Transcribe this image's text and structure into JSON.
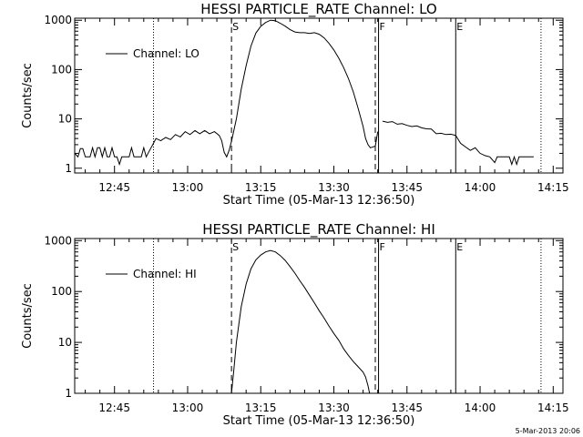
{
  "footer": {
    "timestamp": "5-Mar-2013 20:06"
  },
  "chart_data": [
    {
      "type": "line",
      "title": "HESSI PARTICLE_RATE Channel: LO",
      "xlabel": "Start Time (05-Mar-13 12:36:50)",
      "ylabel": "Counts/sec",
      "yscale": "log",
      "xlim": [
        "12:36:50",
        "14:17:00"
      ],
      "ylim": [
        0.8,
        1100
      ],
      "xticks": [
        "12:45",
        "13:00",
        "13:15",
        "13:30",
        "13:45",
        "14:00",
        "14:15"
      ],
      "yticks": [
        {
          "v": 1,
          "label": "1"
        },
        {
          "v": 10,
          "label": "10"
        },
        {
          "v": 100,
          "label": "100"
        },
        {
          "v": 1000,
          "label": "1000"
        }
      ],
      "legend": {
        "position": "top-left",
        "entries": [
          "Channel: LO"
        ]
      },
      "markers": [
        {
          "t": "12:53:00",
          "style": "dotted",
          "label": ""
        },
        {
          "t": "13:09:00",
          "style": "dashed",
          "label": "S"
        },
        {
          "t": "13:38:30",
          "style": "dashed",
          "label": ""
        },
        {
          "t": "13:39:10",
          "style": "solid",
          "label": "F"
        },
        {
          "t": "13:55:00",
          "style": "solid",
          "label": "E"
        },
        {
          "t": "14:12:30",
          "style": "dotted",
          "label": ""
        }
      ],
      "series": [
        {
          "name": "Channel: LO",
          "segments": [
            {
              "points": [
                [
                  "12:36:50",
                  2.0
                ],
                [
                  "12:37:30",
                  1.7
                ],
                [
                  "12:38:00",
                  2.5
                ],
                [
                  "12:38:30",
                  2.5
                ],
                [
                  "12:39:00",
                  1.7
                ],
                [
                  "12:40:00",
                  1.7
                ],
                [
                  "12:40:30",
                  2.6
                ],
                [
                  "12:41:00",
                  1.7
                ],
                [
                  "12:41:30",
                  2.6
                ],
                [
                  "12:42:00",
                  2.6
                ],
                [
                  "12:42:30",
                  1.7
                ],
                [
                  "12:43:00",
                  2.6
                ],
                [
                  "12:43:30",
                  1.7
                ],
                [
                  "12:44:00",
                  1.7
                ],
                [
                  "12:44:30",
                  2.6
                ],
                [
                  "12:45:00",
                  1.7
                ],
                [
                  "12:45:30",
                  1.7
                ],
                [
                  "12:46:00",
                  1.2
                ],
                [
                  "12:46:30",
                  1.7
                ],
                [
                  "12:48:00",
                  1.7
                ],
                [
                  "12:48:30",
                  2.6
                ],
                [
                  "12:49:00",
                  1.7
                ],
                [
                  "12:50:30",
                  1.7
                ],
                [
                  "12:51:00",
                  2.6
                ],
                [
                  "12:51:30",
                  1.7
                ],
                [
                  "12:52:30",
                  2.6
                ],
                [
                  "12:53:00",
                  3.2
                ],
                [
                  "12:53:30",
                  4.0
                ],
                [
                  "12:54:30",
                  3.6
                ],
                [
                  "12:55:30",
                  4.2
                ],
                [
                  "12:56:30",
                  3.8
                ],
                [
                  "12:57:30",
                  4.8
                ],
                [
                  "12:58:30",
                  4.3
                ],
                [
                  "12:59:30",
                  5.5
                ],
                [
                  "13:00:30",
                  4.8
                ],
                [
                  "13:01:30",
                  5.8
                ],
                [
                  "13:02:30",
                  5.0
                ],
                [
                  "13:03:30",
                  5.8
                ],
                [
                  "13:04:30",
                  5.0
                ],
                [
                  "13:05:30",
                  5.5
                ],
                [
                  "13:06:30",
                  4.6
                ],
                [
                  "13:07:00",
                  3.6
                ],
                [
                  "13:07:30",
                  2.1
                ],
                [
                  "13:08:00",
                  1.7
                ],
                [
                  "13:08:30",
                  2.3
                ],
                [
                  "13:09:00",
                  3.5
                ],
                [
                  "13:10:00",
                  10
                ],
                [
                  "13:11:00",
                  40
                ],
                [
                  "13:12:00",
                  120
                ],
                [
                  "13:13:00",
                  300
                ],
                [
                  "13:14:00",
                  550
                ],
                [
                  "13:15:00",
                  750
                ],
                [
                  "13:16:00",
                  900
                ],
                [
                  "13:17:00",
                  1000
                ],
                [
                  "13:18:00",
                  980
                ],
                [
                  "13:19:00",
                  870
                ],
                [
                  "13:20:00",
                  760
                ],
                [
                  "13:21:00",
                  650
                ],
                [
                  "13:22:00",
                  580
                ],
                [
                  "13:23:00",
                  560
                ],
                [
                  "13:24:00",
                  560
                ],
                [
                  "13:25:00",
                  540
                ],
                [
                  "13:26:00",
                  560
                ],
                [
                  "13:27:00",
                  520
                ],
                [
                  "13:28:00",
                  440
                ],
                [
                  "13:29:00",
                  340
                ],
                [
                  "13:30:00",
                  250
                ],
                [
                  "13:31:00",
                  170
                ],
                [
                  "13:32:00",
                  110
                ],
                [
                  "13:33:00",
                  65
                ],
                [
                  "13:34:00",
                  35
                ],
                [
                  "13:35:00",
                  16
                ],
                [
                  "13:36:00",
                  7
                ],
                [
                  "13:36:30",
                  4
                ],
                [
                  "13:37:00",
                  3.0
                ],
                [
                  "13:37:30",
                  2.6
                ],
                [
                  "13:38:30",
                  2.8
                ],
                [
                  "13:39:00",
                  5.5
                ]
              ]
            },
            {
              "points": [
                [
                  "13:40:00",
                  9.0
                ],
                [
                  "13:41:00",
                  8.5
                ],
                [
                  "13:42:00",
                  8.8
                ],
                [
                  "13:43:00",
                  7.8
                ],
                [
                  "13:44:00",
                  8.0
                ],
                [
                  "13:45:00",
                  7.4
                ],
                [
                  "13:46:00",
                  7.0
                ],
                [
                  "13:47:00",
                  7.2
                ],
                [
                  "13:48:00",
                  6.6
                ],
                [
                  "13:49:00",
                  6.3
                ],
                [
                  "13:50:00",
                  6.2
                ],
                [
                  "13:51:00",
                  5.0
                ],
                [
                  "13:52:00",
                  5.1
                ],
                [
                  "13:53:00",
                  4.8
                ],
                [
                  "13:54:00",
                  4.9
                ],
                [
                  "13:55:00",
                  4.6
                ],
                [
                  "13:56:00",
                  3.2
                ],
                [
                  "13:57:00",
                  2.7
                ],
                [
                  "13:58:00",
                  2.3
                ],
                [
                  "13:59:00",
                  2.6
                ],
                [
                  "14:00:00",
                  2.0
                ],
                [
                  "14:01:00",
                  1.8
                ],
                [
                  "14:02:00",
                  1.7
                ],
                [
                  "14:03:00",
                  1.3
                ],
                [
                  "14:03:30",
                  1.7
                ],
                [
                  "14:05:00",
                  1.7
                ],
                [
                  "14:06:00",
                  1.7
                ],
                [
                  "14:06:30",
                  1.2
                ],
                [
                  "14:07:00",
                  1.7
                ],
                [
                  "14:07:30",
                  1.2
                ],
                [
                  "14:08:00",
                  1.7
                ],
                [
                  "14:11:00",
                  1.7
                ]
              ]
            }
          ]
        }
      ]
    },
    {
      "type": "line",
      "title": "HESSI PARTICLE_RATE Channel: HI",
      "xlabel": "Start Time (05-Mar-13 12:36:50)",
      "ylabel": "Counts/sec",
      "yscale": "log",
      "xlim": [
        "12:36:50",
        "14:17:00"
      ],
      "ylim": [
        1,
        1100
      ],
      "xticks": [
        "12:45",
        "13:00",
        "13:15",
        "13:30",
        "13:45",
        "14:00",
        "14:15"
      ],
      "yticks": [
        {
          "v": 1,
          "label": "1"
        },
        {
          "v": 10,
          "label": "10"
        },
        {
          "v": 100,
          "label": "100"
        },
        {
          "v": 1000,
          "label": "1000"
        }
      ],
      "legend": {
        "position": "top-left",
        "entries": [
          "Channel: HI"
        ]
      },
      "markers": [
        {
          "t": "12:53:00",
          "style": "dotted",
          "label": ""
        },
        {
          "t": "13:09:00",
          "style": "dashed",
          "label": "S"
        },
        {
          "t": "13:38:30",
          "style": "dashed",
          "label": ""
        },
        {
          "t": "13:39:10",
          "style": "solid",
          "label": "F"
        },
        {
          "t": "13:55:00",
          "style": "solid",
          "label": "E"
        },
        {
          "t": "14:12:30",
          "style": "dotted",
          "label": ""
        }
      ],
      "series": [
        {
          "name": "Channel: HI",
          "segments": [
            {
              "points": [
                [
                  "13:09:00",
                  1.0
                ],
                [
                  "13:09:30",
                  3
                ],
                [
                  "13:10:00",
                  10
                ],
                [
                  "13:11:00",
                  50
                ],
                [
                  "13:12:00",
                  140
                ],
                [
                  "13:13:00",
                  280
                ],
                [
                  "13:14:00",
                  420
                ],
                [
                  "13:15:00",
                  520
                ],
                [
                  "13:16:00",
                  600
                ],
                [
                  "13:17:00",
                  640
                ],
                [
                  "13:18:00",
                  600
                ],
                [
                  "13:19:00",
                  510
                ],
                [
                  "13:20:00",
                  410
                ],
                [
                  "13:21:00",
                  310
                ],
                [
                  "13:22:00",
                  230
                ],
                [
                  "13:23:00",
                  165
                ],
                [
                  "13:24:00",
                  120
                ],
                [
                  "13:25:00",
                  85
                ],
                [
                  "13:26:00",
                  60
                ],
                [
                  "13:27:00",
                  42
                ],
                [
                  "13:28:00",
                  30
                ],
                [
                  "13:29:00",
                  21
                ],
                [
                  "13:30:00",
                  15
                ],
                [
                  "13:31:00",
                  11
                ],
                [
                  "13:32:00",
                  7.5
                ],
                [
                  "13:33:00",
                  5.5
                ],
                [
                  "13:34:00",
                  4.2
                ],
                [
                  "13:35:00",
                  3.3
                ],
                [
                  "13:36:00",
                  2.6
                ],
                [
                  "13:36:30",
                  2.1
                ],
                [
                  "13:37:00",
                  1.4
                ],
                [
                  "13:37:20",
                  1.0
                ]
              ]
            }
          ]
        }
      ]
    }
  ]
}
